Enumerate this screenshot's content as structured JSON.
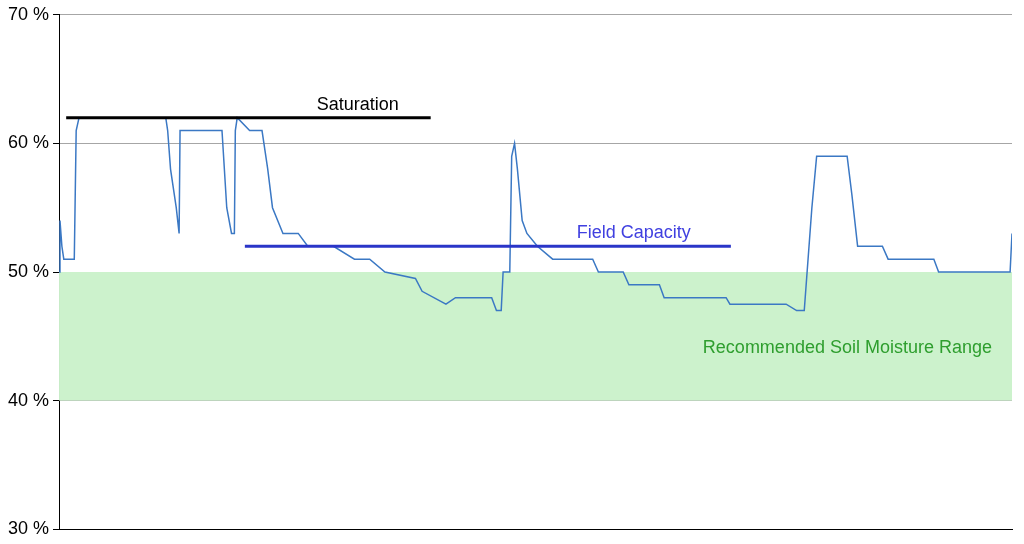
{
  "chart_data": {
    "type": "line",
    "x": [
      0,
      0.1,
      0.3,
      0.5,
      1.6,
      1.8,
      2.1,
      11.2,
      11.4,
      11.7,
      12.3,
      12.6,
      12.7,
      17.1,
      17.6,
      18.1,
      18.4,
      18.5,
      18.7,
      20,
      21.3,
      21.9,
      22.4,
      23.5,
      25.1,
      26.1,
      28.8,
      31,
      32.6,
      34.2,
      37.4,
      38.1,
      40.6,
      41.6,
      45.4,
      45.9,
      46.4,
      46.6,
      47.3,
      47.5,
      47.8,
      48.1,
      48.6,
      49.1,
      50.2,
      51.8,
      56,
      56.6,
      59.2,
      59.8,
      63,
      63.5,
      70,
      70.4,
      76.3,
      77.4,
      78.2,
      78.7,
      79,
      79.5,
      82.7,
      83.2,
      83.8,
      86.4,
      87,
      91.8,
      92.3,
      99.8,
      100
    ],
    "series": [
      {
        "color": "#3b78c4",
        "values": [
          50,
          54,
          52,
          51,
          51,
          61,
          62,
          62,
          61,
          58,
          55,
          53,
          61,
          61,
          55,
          53,
          53,
          61,
          62,
          61,
          61,
          58,
          55,
          53,
          53,
          52,
          52,
          51,
          51,
          50,
          49.5,
          48.5,
          47.5,
          48,
          48,
          47,
          47,
          50,
          50,
          59,
          60,
          58,
          54,
          53,
          52,
          51,
          51,
          50,
          50,
          49,
          49,
          48,
          48,
          47.5,
          47.5,
          47,
          47,
          52,
          55,
          59,
          59,
          56,
          52,
          52,
          51,
          51,
          50,
          50,
          53
        ]
      }
    ],
    "xlim": [
      0,
      100
    ],
    "ylim": [
      30,
      70
    ],
    "yticks": [
      {
        "value": 30,
        "label": "30 %"
      },
      {
        "value": 40,
        "label": "40 %"
      },
      {
        "value": 50,
        "label": "50 %"
      },
      {
        "value": 60,
        "label": "60 %"
      },
      {
        "value": 70,
        "label": "70 %"
      }
    ],
    "grid": true,
    "tick_labels": "y",
    "annotations": [
      {
        "type": "band",
        "text": "Recommended Soil Moisture Range",
        "y": [
          40,
          50
        ],
        "color": "#ccf2cc",
        "text_color": "#2e9e2e"
      },
      {
        "type": "hline",
        "text": "Saturation",
        "y": 62,
        "x": [
          0.75,
          39
        ],
        "color": "#000000",
        "text_color": "#000000"
      },
      {
        "type": "hline",
        "text": "Field Capacity",
        "y": 52,
        "x": [
          19.5,
          70.5
        ],
        "color": "#2a35c8",
        "text_color": "#4040e0"
      }
    ]
  }
}
